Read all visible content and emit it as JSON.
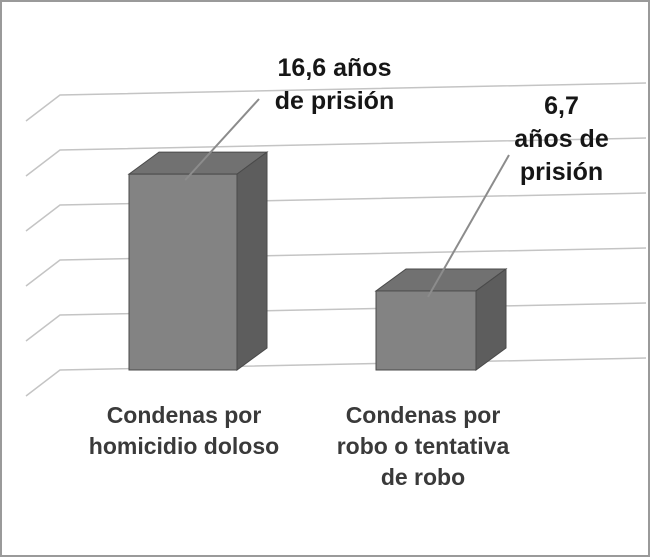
{
  "chart_data": {
    "type": "bar",
    "projection": "3d",
    "title": "",
    "xlabel": "",
    "ylabel": "",
    "unit": "años de prisión",
    "categories": [
      "Condenas por homicidio doloso",
      "Condenas por robo o tentativa de robo"
    ],
    "values": [
      16.6,
      6.7
    ],
    "ylim": [
      0,
      20
    ],
    "grid": true,
    "legend": false,
    "annotations": [
      {
        "value": "16,6",
        "text": "16,6 años de prisión",
        "lines": [
          "16,6 años",
          "de prisión"
        ]
      },
      {
        "value": "6,7",
        "text": "6,7 años de prisión",
        "lines": [
          "6,7",
          "años de",
          "prisión"
        ]
      }
    ],
    "category_label_lines": [
      [
        "Condenas por",
        "homicidio doloso"
      ],
      [
        "Condenas por",
        "robo o tentativa",
        "de robo"
      ]
    ],
    "colors": {
      "bar_front": "#838383",
      "bar_top": "#717171",
      "bar_side": "#5d5d5d",
      "bar_outline": "#4a4a4a",
      "gridline": "#c4c4c4",
      "callout": "#8c8c8c",
      "annotation_text": "#161616",
      "category_text": "#3a3a3a",
      "frame_border": "#9a9a9a",
      "background": "#ffffff"
    }
  }
}
